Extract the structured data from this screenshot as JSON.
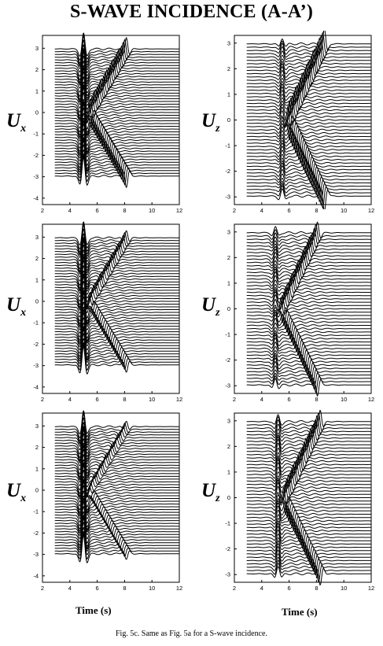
{
  "title": "S-WAVE INCIDENCE (A-A’)",
  "caption": "Fig. 5c. Same as Fig. 5a for a S-wave incidence.",
  "xlabel": "Time (s)",
  "chart_data": [
    {
      "type": "line",
      "component": "U",
      "subscript": "x",
      "xlim": [
        2,
        12
      ],
      "ylim": [
        -4.3,
        3.6
      ],
      "xticks": [
        2,
        4,
        6,
        8,
        10,
        12
      ],
      "yticks": [
        3,
        2,
        1,
        0,
        -1,
        -2,
        -3,
        -4
      ],
      "traces": 47,
      "trace_range": [
        -2.97,
        2.97
      ],
      "direct_time": 5.0,
      "direct_amp": 1.0,
      "scatter_amp": 0.7,
      "scatter_slope": 0.92
    },
    {
      "type": "line",
      "component": "U",
      "subscript": "z",
      "xlim": [
        2,
        12
      ],
      "ylim": [
        -3.3,
        3.3
      ],
      "xticks": [
        2,
        4,
        6,
        8,
        10,
        12
      ],
      "yticks": [
        3,
        2,
        1,
        0,
        -1,
        -2,
        -3
      ],
      "traces": 47,
      "trace_range": [
        -2.97,
        2.97
      ],
      "direct_time": 5.5,
      "direct_amp": 0.3,
      "scatter_amp": 0.75,
      "scatter_slope": 0.9
    },
    {
      "type": "line",
      "component": "U",
      "subscript": "x",
      "xlim": [
        2,
        12
      ],
      "ylim": [
        -4.3,
        3.6
      ],
      "xticks": [
        2,
        4,
        6,
        8,
        10,
        12
      ],
      "yticks": [
        3,
        2,
        1,
        0,
        -1,
        -2,
        -3,
        -4
      ],
      "traces": 47,
      "trace_range": [
        -2.97,
        2.97
      ],
      "direct_time": 5.0,
      "direct_amp": 1.0,
      "scatter_amp": 0.45,
      "scatter_slope": 0.92
    },
    {
      "type": "line",
      "component": "U",
      "subscript": "z",
      "xlim": [
        2,
        12
      ],
      "ylim": [
        -3.3,
        3.3
      ],
      "xticks": [
        2,
        4,
        6,
        8,
        10,
        12
      ],
      "yticks": [
        3,
        2,
        1,
        0,
        -1,
        -2,
        -3
      ],
      "traces": 47,
      "trace_range": [
        -2.97,
        2.97
      ],
      "direct_time": 5.0,
      "direct_amp": 0.3,
      "scatter_amp": 0.55,
      "scatter_slope": 0.9
    },
    {
      "type": "line",
      "component": "U",
      "subscript": "x",
      "xlim": [
        2,
        12
      ],
      "ylim": [
        -4.3,
        3.6
      ],
      "xticks": [
        2,
        4,
        6,
        8,
        10,
        12
      ],
      "yticks": [
        3,
        2,
        1,
        0,
        -1,
        -2,
        -3,
        -4
      ],
      "traces": 47,
      "trace_range": [
        -2.97,
        2.97
      ],
      "direct_time": 5.0,
      "direct_amp": 1.0,
      "scatter_amp": 0.35,
      "scatter_slope": 0.92
    },
    {
      "type": "line",
      "component": "U",
      "subscript": "z",
      "xlim": [
        2,
        12
      ],
      "ylim": [
        -3.3,
        3.3
      ],
      "xticks": [
        2,
        4,
        6,
        8,
        10,
        12
      ],
      "yticks": [
        3,
        2,
        1,
        0,
        -1,
        -2,
        -3
      ],
      "traces": 47,
      "trace_range": [
        -2.97,
        2.97
      ],
      "direct_time": 5.2,
      "direct_amp": 0.35,
      "scatter_amp": 0.6,
      "scatter_slope": 0.9
    }
  ]
}
